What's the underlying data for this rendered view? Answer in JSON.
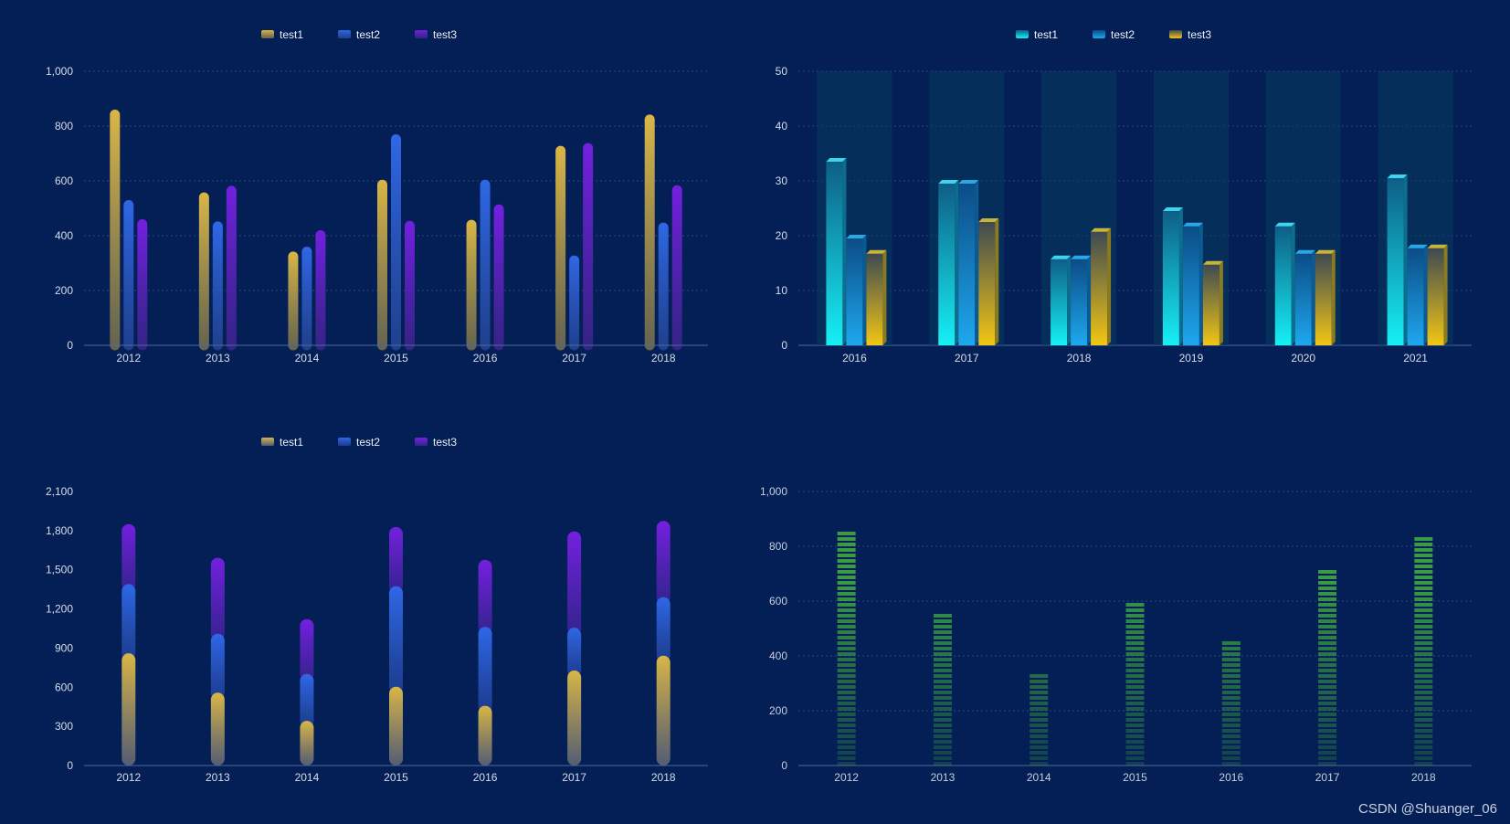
{
  "chart_data": [
    {
      "type": "bar",
      "categories": [
        "2012",
        "2013",
        "2014",
        "2015",
        "2016",
        "2017",
        "2018"
      ],
      "series": [
        {
          "name": "test1",
          "values": [
            860,
            558,
            342,
            604,
            458,
            728,
            842
          ]
        },
        {
          "name": "test2",
          "values": [
            530,
            452,
            360,
            770,
            604,
            328,
            448
          ]
        },
        {
          "name": "test3",
          "values": [
            460,
            582,
            420,
            454,
            514,
            738,
            584
          ]
        }
      ],
      "ylim": [
        0,
        1000
      ],
      "yticks": [
        "0",
        "200",
        "400",
        "600",
        "800",
        "1,000"
      ],
      "legend": "top-center",
      "grid": true,
      "colors": [
        "#c9a53a",
        "#2a5fd6",
        "#6a1fd8"
      ]
    },
    {
      "type": "bar",
      "categories": [
        "2016",
        "2017",
        "2018",
        "2019",
        "2020",
        "2021"
      ],
      "series": [
        {
          "name": "test1",
          "values": [
            33.5,
            29.5,
            15.7,
            24.5,
            21.7,
            30.5
          ]
        },
        {
          "name": "test2",
          "values": [
            19.5,
            29.5,
            15.7,
            21.7,
            16.7,
            17.7
          ]
        },
        {
          "name": "test3",
          "values": [
            16.7,
            22.5,
            20.7,
            14.7,
            16.7,
            17.7
          ]
        }
      ],
      "ylim": [
        0,
        50
      ],
      "yticks": [
        "0",
        "10",
        "20",
        "30",
        "40",
        "50"
      ],
      "legend": "top-center",
      "grid": true,
      "colors": [
        "#18e6f2",
        "#1a9ee8",
        "#e8c21a"
      ]
    },
    {
      "type": "bar",
      "stacked": true,
      "categories": [
        "2012",
        "2013",
        "2014",
        "2015",
        "2016",
        "2017",
        "2018"
      ],
      "series": [
        {
          "name": "test1",
          "values": [
            860,
            558,
            342,
            604,
            458,
            728,
            842
          ]
        },
        {
          "name": "test2",
          "values": [
            530,
            452,
            360,
            770,
            604,
            328,
            448
          ]
        },
        {
          "name": "test3",
          "values": [
            460,
            582,
            420,
            454,
            514,
            738,
            584
          ]
        }
      ],
      "ylim": [
        0,
        2100
      ],
      "yticks": [
        "0",
        "300",
        "600",
        "900",
        "1,200",
        "1,500",
        "1,800",
        "2,100"
      ],
      "legend": "top-center",
      "grid": false,
      "colors": [
        "#c9a53a",
        "#2a5fd6",
        "#6a1fd8"
      ]
    },
    {
      "type": "bar",
      "categories": [
        "2012",
        "2013",
        "2014",
        "2015",
        "2016",
        "2017",
        "2018"
      ],
      "series": [
        {
          "values": [
            855,
            555,
            345,
            605,
            465,
            730,
            850
          ]
        }
      ],
      "ylim": [
        0,
        1000
      ],
      "yticks": [
        "0",
        "200",
        "400",
        "600",
        "800",
        "1,000"
      ],
      "grid": true,
      "colors": [
        "#3a9a46"
      ]
    }
  ],
  "watermark": "CSDN @Shuanger_06"
}
